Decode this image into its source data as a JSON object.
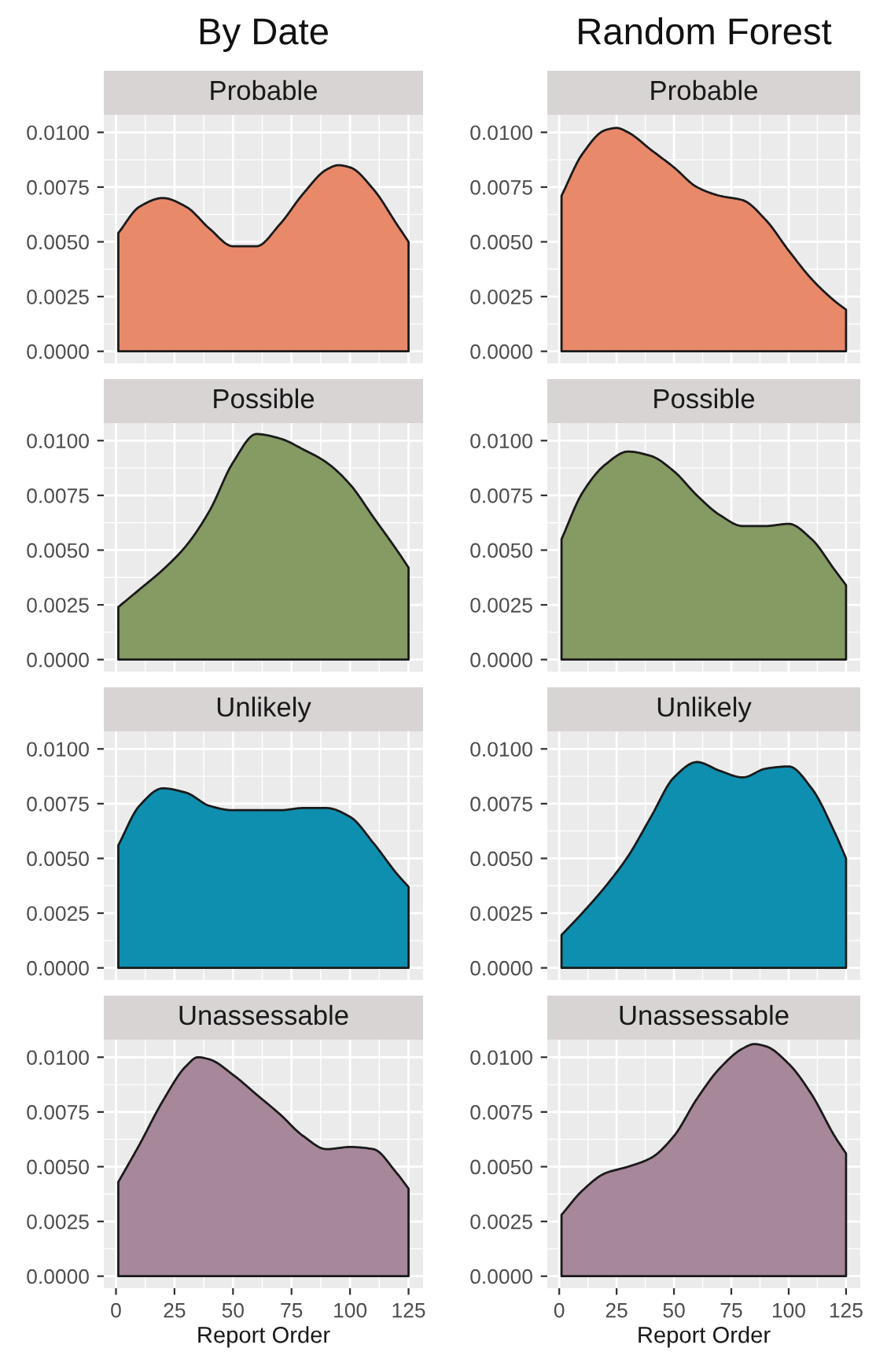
{
  "chart_data": [
    {
      "type": "area",
      "title": "By Date",
      "subtitle": "Probable",
      "tick_labels": "y",
      "grid": true,
      "x": [
        1,
        10,
        20,
        30,
        40,
        50,
        60,
        70,
        80,
        90,
        95,
        100,
        110,
        120,
        125
      ],
      "series": [
        {
          "color": "#e8896a",
          "values": [
            0.0054,
            0.0066,
            0.007,
            0.0066,
            0.0056,
            0.0048,
            0.0048,
            0.0058,
            0.0072,
            0.0083,
            0.0085,
            0.0084,
            0.0074,
            0.0058,
            0.005
          ]
        }
      ],
      "xlim": [
        -5.2,
        131.2
      ],
      "xticks": [
        0,
        25,
        50,
        75,
        100,
        125
      ],
      "ylim": [
        -0.00055,
        0.0108
      ],
      "yticks": [
        {
          "value": 0,
          "label": "0.0000"
        },
        {
          "value": 0.0025,
          "label": "0.0025"
        },
        {
          "value": 0.005,
          "label": "0.0050"
        },
        {
          "value": 0.0075,
          "label": "0.0075"
        },
        {
          "value": 0.01,
          "label": "0.0100"
        }
      ]
    },
    {
      "type": "area",
      "title": "Random Forest",
      "subtitle": "Probable",
      "tick_labels": "y",
      "grid": true,
      "x": [
        1,
        10,
        20,
        25,
        30,
        40,
        50,
        60,
        70,
        80,
        90,
        100,
        110,
        120,
        125
      ],
      "series": [
        {
          "color": "#e8896a",
          "values": [
            0.0071,
            0.009,
            0.0101,
            0.0102,
            0.01,
            0.0092,
            0.0084,
            0.0075,
            0.0071,
            0.0069,
            0.006,
            0.0046,
            0.0033,
            0.0023,
            0.0019
          ]
        }
      ],
      "xlim": [
        -5.2,
        131.2
      ],
      "xticks": [
        0,
        25,
        50,
        75,
        100,
        125
      ],
      "ylim": [
        -0.00055,
        0.0108
      ],
      "yticks": [
        {
          "value": 0,
          "label": "0.0000"
        },
        {
          "value": 0.0025,
          "label": "0.0025"
        },
        {
          "value": 0.005,
          "label": "0.0050"
        },
        {
          "value": 0.0075,
          "label": "0.0075"
        },
        {
          "value": 0.01,
          "label": "0.0100"
        }
      ]
    },
    {
      "type": "area",
      "subtitle": "Possible",
      "tick_labels": "y",
      "grid": true,
      "x": [
        1,
        10,
        20,
        30,
        40,
        50,
        60,
        70,
        80,
        90,
        100,
        110,
        120,
        125
      ],
      "series": [
        {
          "color": "#869a63",
          "values": [
            0.0024,
            0.0032,
            0.0041,
            0.0052,
            0.0068,
            0.009,
            0.0103,
            0.0101,
            0.0096,
            0.009,
            0.008,
            0.0065,
            0.005,
            0.0042
          ]
        }
      ],
      "xlim": [
        -5.2,
        131.2
      ],
      "xticks": [
        0,
        25,
        50,
        75,
        100,
        125
      ],
      "ylim": [
        -0.00055,
        0.0108
      ],
      "yticks": [
        {
          "value": 0,
          "label": "0.0000"
        },
        {
          "value": 0.0025,
          "label": "0.0025"
        },
        {
          "value": 0.005,
          "label": "0.0050"
        },
        {
          "value": 0.0075,
          "label": "0.0075"
        },
        {
          "value": 0.01,
          "label": "0.0100"
        }
      ]
    },
    {
      "type": "area",
      "subtitle": "Possible",
      "tick_labels": "y",
      "grid": true,
      "x": [
        1,
        10,
        20,
        30,
        40,
        50,
        60,
        70,
        80,
        90,
        100,
        110,
        120,
        125
      ],
      "series": [
        {
          "color": "#869a63",
          "values": [
            0.0055,
            0.0076,
            0.0089,
            0.0095,
            0.0093,
            0.0086,
            0.0075,
            0.0066,
            0.0061,
            0.0061,
            0.0062,
            0.0055,
            0.0041,
            0.0034
          ]
        }
      ],
      "xlim": [
        -5.2,
        131.2
      ],
      "xticks": [
        0,
        25,
        50,
        75,
        100,
        125
      ],
      "ylim": [
        -0.00055,
        0.0108
      ],
      "yticks": [
        {
          "value": 0,
          "label": "0.0000"
        },
        {
          "value": 0.0025,
          "label": "0.0025"
        },
        {
          "value": 0.005,
          "label": "0.0050"
        },
        {
          "value": 0.0075,
          "label": "0.0075"
        },
        {
          "value": 0.01,
          "label": "0.0100"
        }
      ]
    },
    {
      "type": "area",
      "subtitle": "Unlikely",
      "tick_labels": "y",
      "grid": true,
      "x": [
        1,
        10,
        20,
        30,
        40,
        50,
        60,
        70,
        80,
        90,
        100,
        110,
        120,
        125
      ],
      "series": [
        {
          "color": "#0e8fb0",
          "values": [
            0.0056,
            0.0074,
            0.0082,
            0.008,
            0.0074,
            0.0072,
            0.0072,
            0.0072,
            0.0073,
            0.0073,
            0.0069,
            0.0057,
            0.0043,
            0.0037
          ]
        }
      ],
      "xlim": [
        -5.2,
        131.2
      ],
      "xticks": [
        0,
        25,
        50,
        75,
        100,
        125
      ],
      "ylim": [
        -0.00055,
        0.0108
      ],
      "yticks": [
        {
          "value": 0,
          "label": "0.0000"
        },
        {
          "value": 0.0025,
          "label": "0.0025"
        },
        {
          "value": 0.005,
          "label": "0.0050"
        },
        {
          "value": 0.0075,
          "label": "0.0075"
        },
        {
          "value": 0.01,
          "label": "0.0100"
        }
      ]
    },
    {
      "type": "area",
      "subtitle": "Unlikely",
      "tick_labels": "y",
      "grid": true,
      "x": [
        1,
        10,
        20,
        30,
        40,
        50,
        60,
        70,
        80,
        90,
        100,
        110,
        120,
        125
      ],
      "series": [
        {
          "color": "#0e8fb0",
          "values": [
            0.0015,
            0.0025,
            0.0037,
            0.0051,
            0.0069,
            0.0087,
            0.0094,
            0.009,
            0.0087,
            0.0091,
            0.0092,
            0.0082,
            0.0062,
            0.005
          ]
        }
      ],
      "xlim": [
        -5.2,
        131.2
      ],
      "xticks": [
        0,
        25,
        50,
        75,
        100,
        125
      ],
      "ylim": [
        -0.00055,
        0.0108
      ],
      "yticks": [
        {
          "value": 0,
          "label": "0.0000"
        },
        {
          "value": 0.0025,
          "label": "0.0025"
        },
        {
          "value": 0.005,
          "label": "0.0050"
        },
        {
          "value": 0.0075,
          "label": "0.0075"
        },
        {
          "value": 0.01,
          "label": "0.0100"
        }
      ]
    },
    {
      "type": "area",
      "subtitle": "Unassessable",
      "xlabel": "Report Order",
      "grid": true,
      "x": [
        1,
        10,
        20,
        30,
        35,
        40,
        50,
        60,
        70,
        80,
        90,
        100,
        110,
        120,
        125
      ],
      "series": [
        {
          "color": "#a7879a",
          "values": [
            0.0043,
            0.006,
            0.008,
            0.0096,
            0.01,
            0.0099,
            0.0092,
            0.0083,
            0.0074,
            0.0064,
            0.0058,
            0.0059,
            0.0058,
            0.0047,
            0.004
          ]
        }
      ],
      "xlim": [
        -5.2,
        131.2
      ],
      "xticks": [
        0,
        25,
        50,
        75,
        100,
        125
      ],
      "ylim": [
        -0.00055,
        0.0108
      ],
      "yticks": [
        {
          "value": 0,
          "label": "0.0000"
        },
        {
          "value": 0.0025,
          "label": "0.0025"
        },
        {
          "value": 0.005,
          "label": "0.0050"
        },
        {
          "value": 0.0075,
          "label": "0.0075"
        },
        {
          "value": 0.01,
          "label": "0.0100"
        }
      ]
    },
    {
      "type": "area",
      "subtitle": "Unassessable",
      "xlabel": "Report Order",
      "grid": true,
      "x": [
        1,
        10,
        20,
        30,
        40,
        50,
        60,
        70,
        80,
        85,
        90,
        100,
        110,
        120,
        125
      ],
      "series": [
        {
          "color": "#a7879a",
          "values": [
            0.0028,
            0.0039,
            0.0047,
            0.005,
            0.0054,
            0.0064,
            0.0081,
            0.0095,
            0.0104,
            0.0106,
            0.0105,
            0.0097,
            0.0083,
            0.0064,
            0.0056
          ]
        }
      ],
      "xlim": [
        -5.2,
        131.2
      ],
      "xticks": [
        0,
        25,
        50,
        75,
        100,
        125
      ],
      "ylim": [
        -0.00055,
        0.0108
      ],
      "yticks": [
        {
          "value": 0,
          "label": "0.0000"
        },
        {
          "value": 0.0025,
          "label": "0.0025"
        },
        {
          "value": 0.005,
          "label": "0.0050"
        },
        {
          "value": 0.0075,
          "label": "0.0075"
        },
        {
          "value": 0.01,
          "label": "0.0100"
        }
      ]
    }
  ]
}
